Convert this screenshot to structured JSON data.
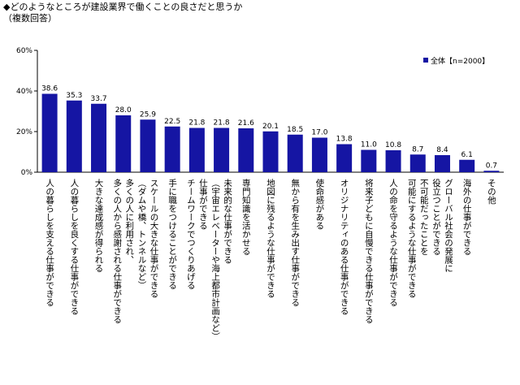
{
  "title": "◆どのようなところが建設業界で働くことの良さだと思うか",
  "subtitle": "（複数回答）",
  "chart_data": {
    "type": "bar",
    "title": "◆どのようなところが建設業界で働くことの良さだと思うか",
    "subtitle": "（複数回答）",
    "ylim": [
      0,
      60
    ],
    "yticks": [
      "0%",
      "20%",
      "40%",
      "60%"
    ],
    "grid": false,
    "legend_position": "top-right",
    "series": [
      {
        "name": "全体【n=2000】",
        "color": "#1515a3",
        "values": [
          38.6,
          35.3,
          33.7,
          28.0,
          25.9,
          22.5,
          21.8,
          21.8,
          21.6,
          20.1,
          18.5,
          17.0,
          13.8,
          11.0,
          10.8,
          8.7,
          8.4,
          6.1,
          0.7
        ],
        "labels": [
          "38.6",
          "35.3",
          "33.7",
          "28.0",
          "25.9",
          "22.5",
          "21.8",
          "21.8",
          "21.6",
          "20.1",
          "18.5",
          "17.0",
          "13.8",
          "11.0",
          "10.8",
          "8.7",
          "8.4",
          "6.1",
          "0.7"
        ]
      }
    ],
    "categories": [
      [
        "人の暮らしを支える仕事ができる"
      ],
      [
        "人の暮らしを良くする仕事ができる"
      ],
      [
        "大きな達成感が得られる"
      ],
      [
        "多くの人に利用され、",
        "多くの人から感謝される仕事ができる"
      ],
      [
        "スケールの大きな仕事ができる",
        "（ダムや橋、トンネルなど）"
      ],
      [
        "手に職をつけることができる"
      ],
      [
        "仕事ができる",
        "チームワークでつくりあげる"
      ],
      [
        "未来的な仕事ができる",
        "（宇宙エレベーターや海上都市計画など）"
      ],
      [
        "専門知識を活かせる"
      ],
      [
        "地図に残るような仕事ができる"
      ],
      [
        "無から有を生み出す仕事ができる"
      ],
      [
        "使命感がある"
      ],
      [
        "オリジナリティのある仕事ができる"
      ],
      [
        "将来子どもに自慢できる仕事ができる"
      ],
      [
        "人の命を守るような仕事ができる"
      ],
      [
        "不可能だったことを",
        "可能にするような仕事ができる"
      ],
      [
        "グローバル社会の発展に",
        "役立つことができる"
      ],
      [
        "海外の仕事ができる"
      ],
      [
        "その他"
      ]
    ]
  }
}
